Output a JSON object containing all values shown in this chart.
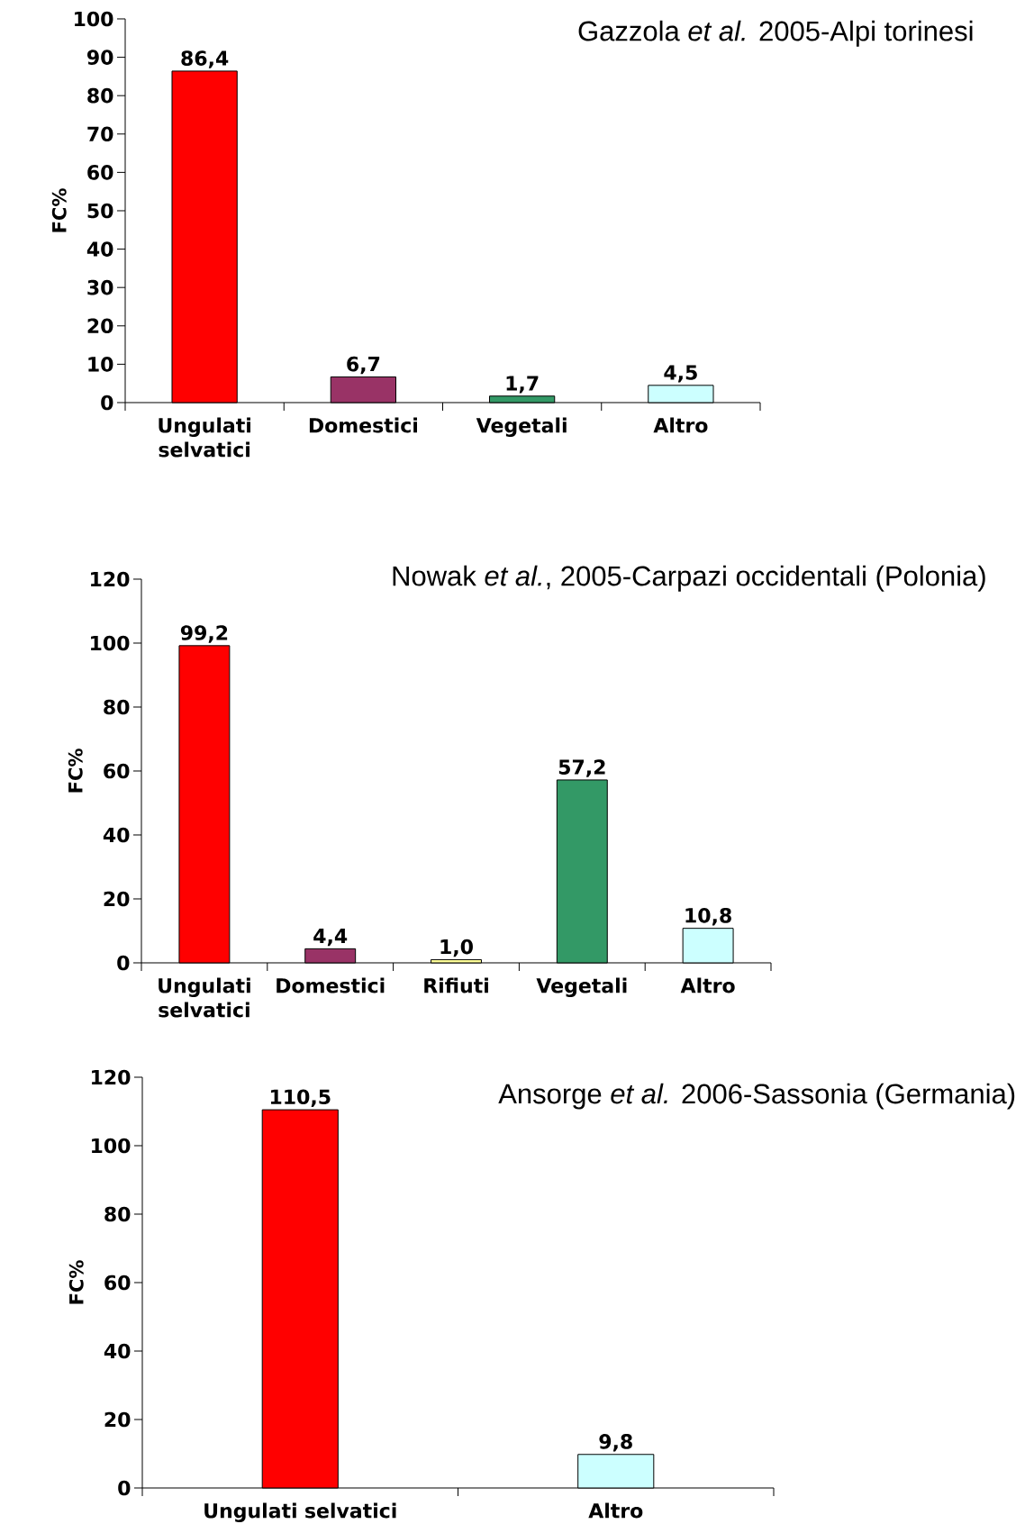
{
  "chart_data": [
    {
      "type": "bar",
      "title": "Gazzola *et al.* 2005-Alpi torinesi",
      "ylabel": "FC%",
      "categories": [
        "Ungulati selvatici",
        "Domestici",
        "Vegetali",
        "Altro"
      ],
      "values": [
        86.4,
        6.7,
        1.7,
        4.5
      ],
      "colors": [
        "#ff0000",
        "#993366",
        "#339966",
        "#ccffff"
      ],
      "value_labels": [
        "86,4",
        "6,7",
        "1,7",
        "4,5"
      ],
      "ylim": [
        0,
        100
      ],
      "yticks": [
        0,
        10,
        20,
        30,
        40,
        50,
        60,
        70,
        80,
        90,
        100
      ]
    },
    {
      "type": "bar",
      "title": "Nowak *et al.*, 2005-Carpazi occidentali (Polonia)",
      "ylabel": "FC%",
      "categories": [
        "Ungulati selvatici",
        "Domestici",
        "Rifiuti",
        "Vegetali",
        "Altro"
      ],
      "values": [
        99.2,
        4.4,
        1.0,
        57.2,
        10.8
      ],
      "colors": [
        "#ff0000",
        "#993366",
        "#ffff99",
        "#339966",
        "#ccffff"
      ],
      "value_labels": [
        "99,2",
        "4,4",
        "1,0",
        "57,2",
        "10,8"
      ],
      "ylim": [
        0,
        120
      ],
      "yticks": [
        0,
        20,
        40,
        60,
        80,
        100,
        120
      ]
    },
    {
      "type": "bar",
      "title": "Ansorge *et al.* 2006-Sassonia (Germania)",
      "ylabel": "FC%",
      "categories": [
        "Ungulati selvatici",
        "Altro"
      ],
      "values": [
        110.5,
        9.8
      ],
      "colors": [
        "#ff0000",
        "#ccffff"
      ],
      "value_labels": [
        "110,5",
        "9,8"
      ],
      "ylim": [
        0,
        120
      ],
      "yticks": [
        0,
        20,
        40,
        60,
        80,
        100,
        120
      ]
    }
  ]
}
